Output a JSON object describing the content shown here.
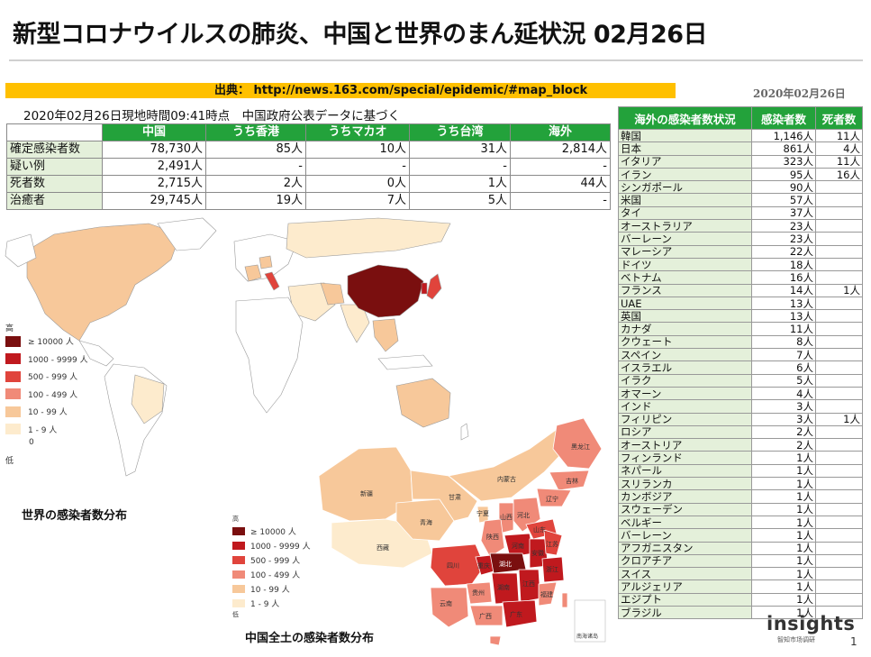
{
  "title": "新型コロナウイルスの肺炎、中国と世界のまん延状況 02月26日",
  "source": "出典： http://news.163.com/special/epidemic/#map_block",
  "date_right": "2020年02月26日",
  "subline": "2020年02月26日現地時間09:41時点　中国政府公表データに基づく",
  "main_table": {
    "headers": [
      "中国",
      "うち香港",
      "うちマカオ",
      "うち台湾",
      "海外"
    ],
    "rows": [
      {
        "label": "確定感染者数",
        "values": [
          "78,730人",
          "85人",
          "10人",
          "31人",
          "2,814人"
        ]
      },
      {
        "label": "疑い例",
        "values": [
          "2,491人",
          "-",
          "-",
          "-",
          "-"
        ]
      },
      {
        "label": "死者数",
        "values": [
          "2,715人",
          "2人",
          "0人",
          "1人",
          "44人"
        ]
      },
      {
        "label": "治癒者",
        "values": [
          "29,745人",
          "19人",
          "7人",
          "5人",
          "-"
        ]
      }
    ]
  },
  "overseas_table": {
    "headers": [
      "海外の感染者数状況",
      "感染者数",
      "死者数"
    ],
    "rows": [
      {
        "country": "韓国",
        "cases": "1,146人",
        "deaths": "11人"
      },
      {
        "country": "日本",
        "cases": "861人",
        "deaths": "4人"
      },
      {
        "country": "イタリア",
        "cases": "323人",
        "deaths": "11人"
      },
      {
        "country": "イラン",
        "cases": "95人",
        "deaths": "16人"
      },
      {
        "country": "シンガポール",
        "cases": "90人",
        "deaths": ""
      },
      {
        "country": "米国",
        "cases": "57人",
        "deaths": ""
      },
      {
        "country": "タイ",
        "cases": "37人",
        "deaths": ""
      },
      {
        "country": "オーストラリア",
        "cases": "23人",
        "deaths": ""
      },
      {
        "country": "バーレーン",
        "cases": "23人",
        "deaths": ""
      },
      {
        "country": "マレーシア",
        "cases": "22人",
        "deaths": ""
      },
      {
        "country": "ドイツ",
        "cases": "18人",
        "deaths": ""
      },
      {
        "country": "ベトナム",
        "cases": "16人",
        "deaths": ""
      },
      {
        "country": "フランス",
        "cases": "14人",
        "deaths": "1人"
      },
      {
        "country": "UAE",
        "cases": "13人",
        "deaths": ""
      },
      {
        "country": "英国",
        "cases": "13人",
        "deaths": ""
      },
      {
        "country": "カナダ",
        "cases": "11人",
        "deaths": ""
      },
      {
        "country": "クウェート",
        "cases": "8人",
        "deaths": ""
      },
      {
        "country": "スペイン",
        "cases": "7人",
        "deaths": ""
      },
      {
        "country": "イスラエル",
        "cases": "6人",
        "deaths": ""
      },
      {
        "country": "イラク",
        "cases": "5人",
        "deaths": ""
      },
      {
        "country": "オマーン",
        "cases": "4人",
        "deaths": ""
      },
      {
        "country": "インド",
        "cases": "3人",
        "deaths": ""
      },
      {
        "country": "フィリピン",
        "cases": "3人",
        "deaths": "1人"
      },
      {
        "country": "ロシア",
        "cases": "2人",
        "deaths": ""
      },
      {
        "country": "オーストリア",
        "cases": "2人",
        "deaths": ""
      },
      {
        "country": "フィンランド",
        "cases": "1人",
        "deaths": ""
      },
      {
        "country": "ネパール",
        "cases": "1人",
        "deaths": ""
      },
      {
        "country": "スリランカ",
        "cases": "1人",
        "deaths": ""
      },
      {
        "country": "カンボジア",
        "cases": "1人",
        "deaths": ""
      },
      {
        "country": "スウェーデン",
        "cases": "1人",
        "deaths": ""
      },
      {
        "country": "ベルギー",
        "cases": "1人",
        "deaths": ""
      },
      {
        "country": "バーレーン",
        "cases": "1人",
        "deaths": ""
      },
      {
        "country": "アフガニスタン",
        "cases": "1人",
        "deaths": ""
      },
      {
        "country": "クロアチア",
        "cases": "1人",
        "deaths": ""
      },
      {
        "country": "スイス",
        "cases": "1人",
        "deaths": ""
      },
      {
        "country": "アルジェリア",
        "cases": "1人",
        "deaths": ""
      },
      {
        "country": "エジプト",
        "cases": "1人",
        "deaths": ""
      },
      {
        "country": "ブラジル",
        "cases": "1人",
        "deaths": ""
      }
    ]
  },
  "world_legend": {
    "high": "高",
    "low": "低",
    "items": [
      {
        "label": "≥ 10000 人",
        "color": "#7a0f0f"
      },
      {
        "label": "1000 - 9999 人",
        "color": "#c0191e"
      },
      {
        "label": "500 - 999 人",
        "color": "#e0443c"
      },
      {
        "label": "100 - 499 人",
        "color": "#f08a78"
      },
      {
        "label": "10 - 99 人",
        "color": "#f7c89a"
      },
      {
        "label": "1 - 9 人",
        "color": "#fdebcd"
      }
    ],
    "zero": "0"
  },
  "china_legend": {
    "high": "高",
    "low": "低",
    "items": [
      {
        "label": "≥ 10000 人",
        "color": "#7a0f0f"
      },
      {
        "label": "1000 - 9999 人",
        "color": "#c0191e"
      },
      {
        "label": "500 - 999 人",
        "color": "#e0443c"
      },
      {
        "label": "100 - 499 人",
        "color": "#f08a78"
      },
      {
        "label": "10 - 99 人",
        "color": "#f7c89a"
      },
      {
        "label": "1 - 9 人",
        "color": "#fdebcd"
      }
    ]
  },
  "china_provinces": [
    "新疆",
    "西藏",
    "青海",
    "甘肃",
    "内蒙古",
    "黑龙江",
    "吉林",
    "辽宁",
    "河北",
    "山西",
    "陕西",
    "宁夏",
    "山东",
    "河南",
    "四川",
    "重庆",
    "湖北",
    "安徽",
    "江苏",
    "贵州",
    "湖南",
    "江西",
    "浙江",
    "云南",
    "广西",
    "广东",
    "福建",
    "南海诸岛"
  ],
  "world_caption": "世界の感染者数分布",
  "china_caption": "中国全土の感染者数分布",
  "logo": "insights",
  "logo_sub": "智知市场调研",
  "page_number": "1"
}
